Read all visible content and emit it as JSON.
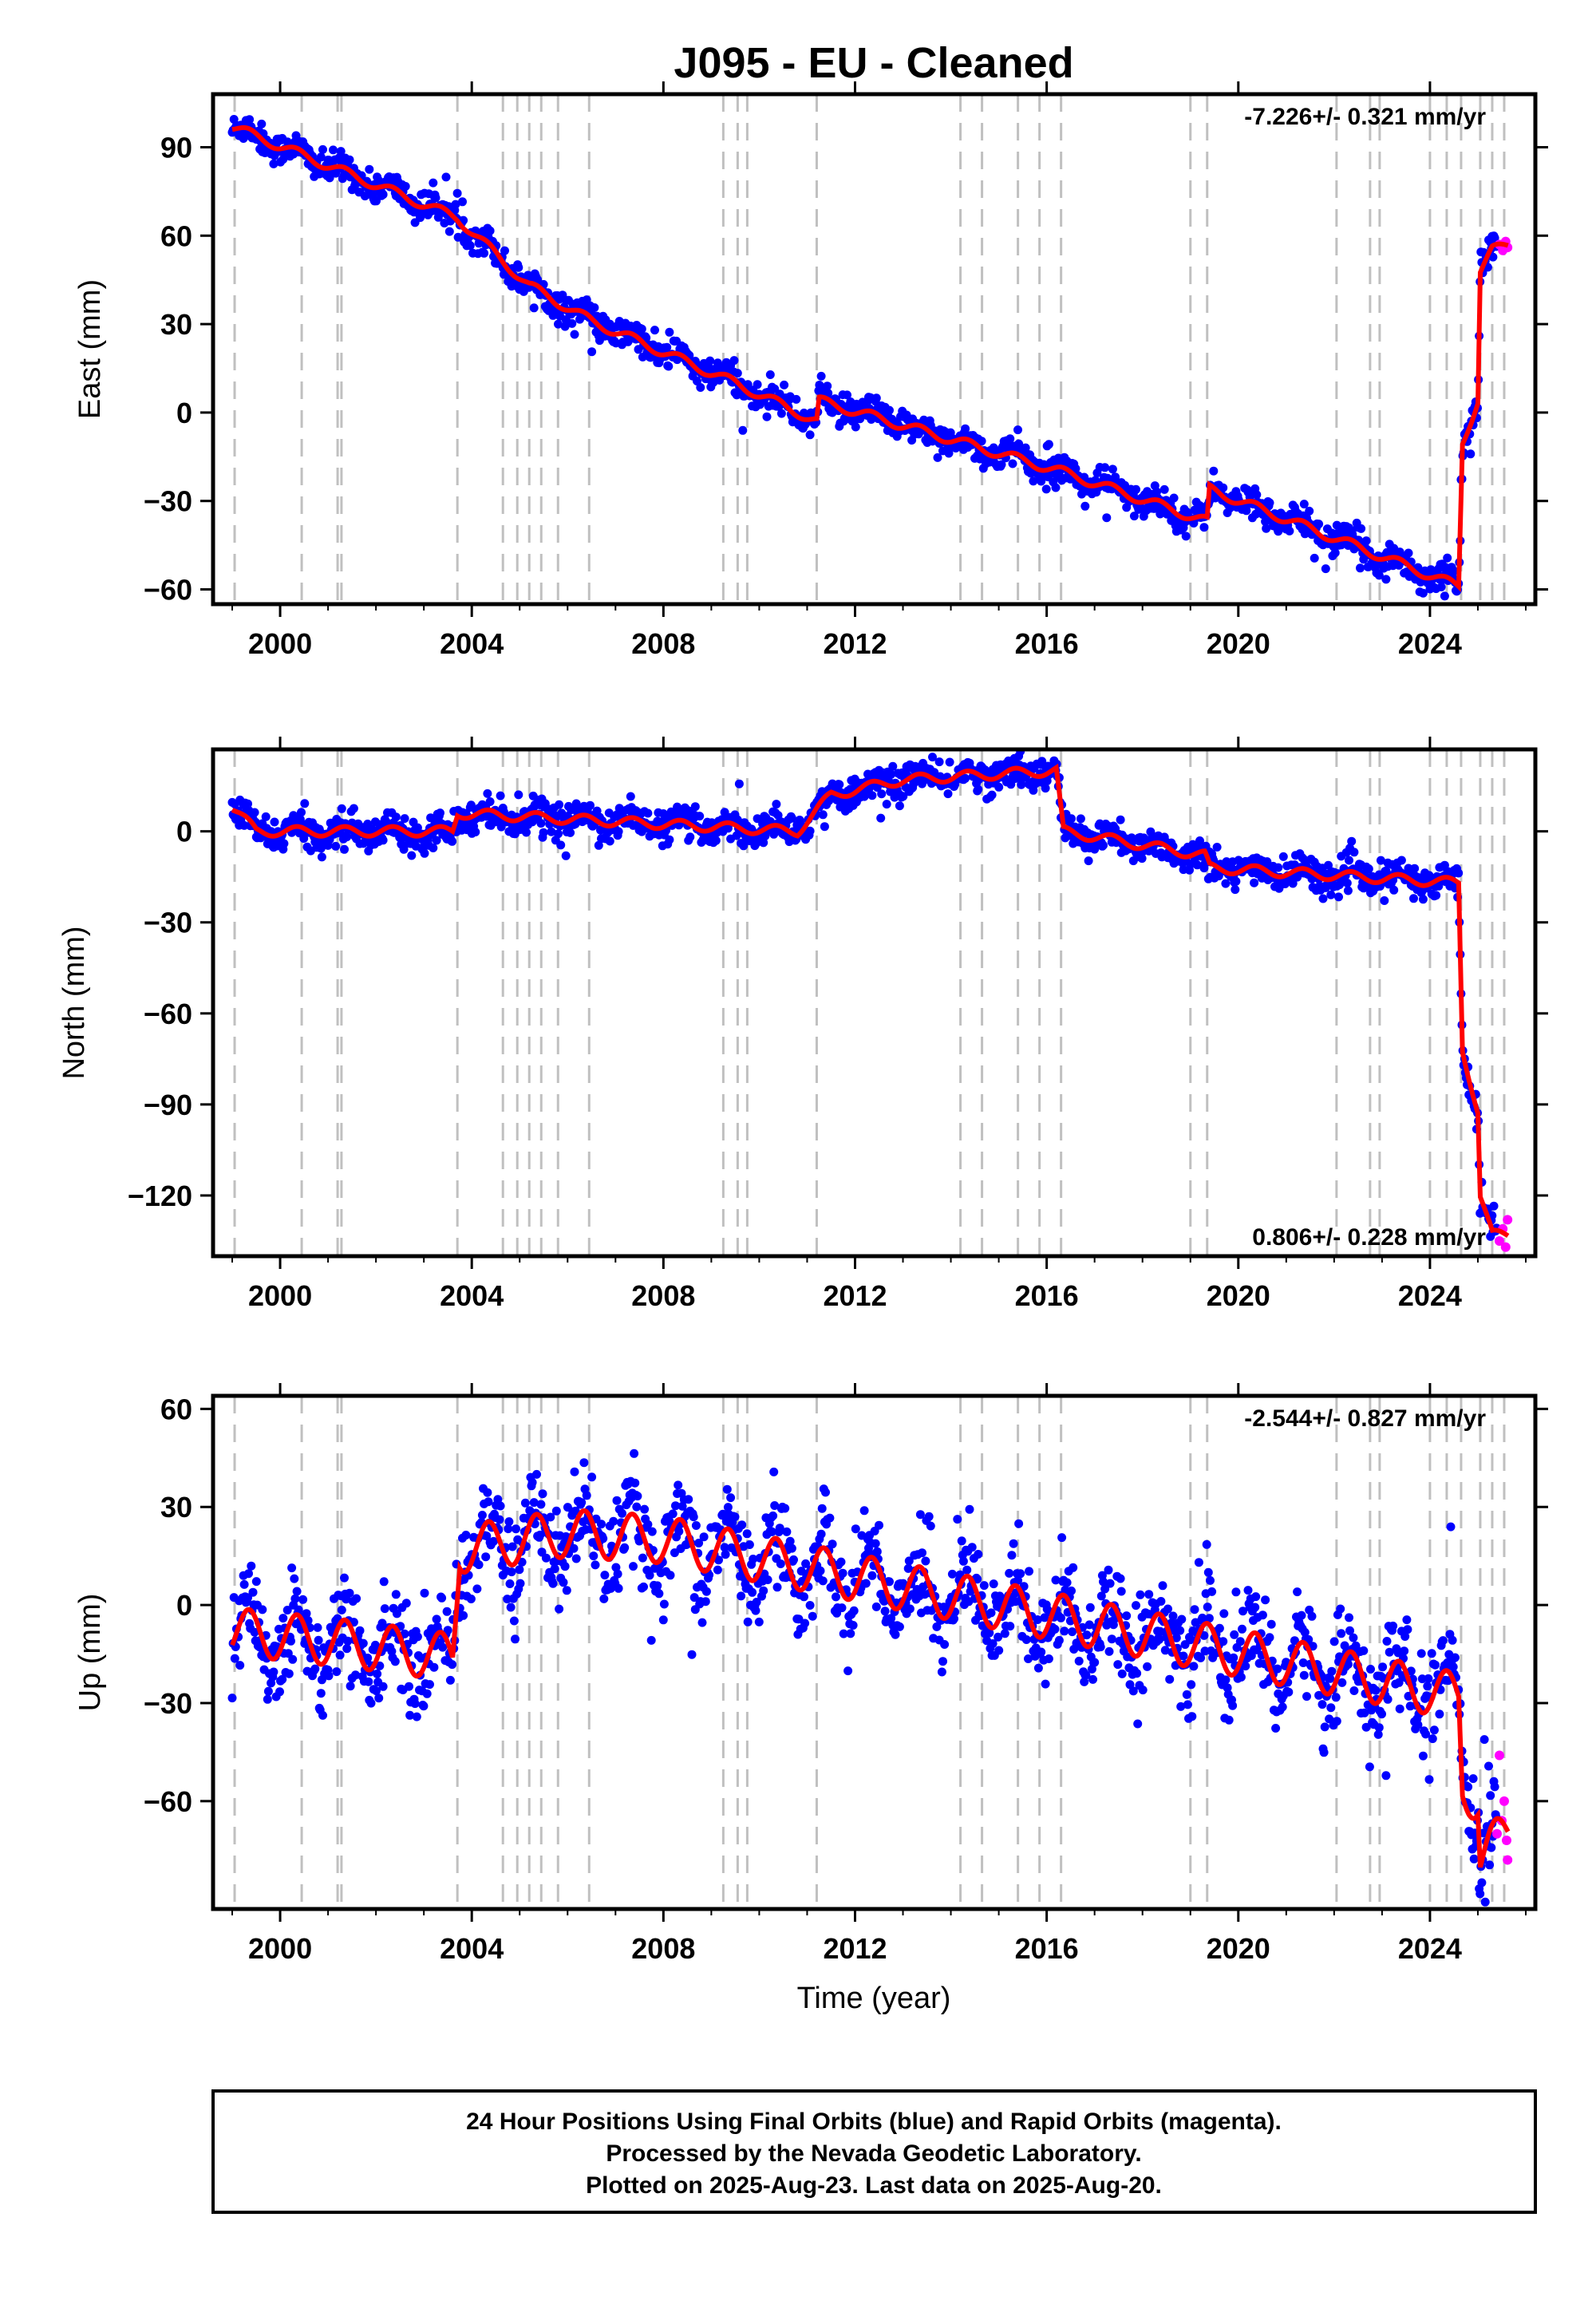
{
  "title": "J095  - EU - Cleaned",
  "xlabel": "Time (year)",
  "x_ticks": [
    2000,
    2004,
    2008,
    2012,
    2016,
    2020,
    2024
  ],
  "xlim": [
    1998.6,
    2026.2
  ],
  "colors": {
    "final": "#0000ff",
    "rapid": "#ff00ff",
    "model": "#ff0000",
    "events": "#c0c0c0"
  },
  "event_lines": [
    1999.05,
    2000.45,
    2001.2,
    2001.28,
    2003.7,
    2004.65,
    2004.95,
    2005.2,
    2005.45,
    2005.8,
    2006.45,
    2009.25,
    2009.55,
    2009.75,
    2011.2,
    2014.2,
    2014.65,
    2015.4,
    2015.85,
    2016.3,
    2019.0,
    2019.35,
    2022.05,
    2022.75,
    2022.95,
    2024.0,
    2024.35,
    2024.65,
    2025.05,
    2025.3,
    2025.55
  ],
  "footer": {
    "line1": "24 Hour Positions Using Final Orbits (blue) and Rapid Orbits (magenta).",
    "line2": "Processed by the Nevada Geodetic Laboratory.",
    "line3": "Plotted on 2025-Aug-23. Last data on 2025-Aug-20."
  },
  "chart_data": [
    {
      "type": "scatter",
      "ylabel": "East (mm)",
      "ylim": [
        -65,
        108
      ],
      "y_ticks": [
        -60,
        -30,
        0,
        30,
        60,
        90
      ],
      "rate_label": "-7.226+/- 0.321 mm/yr",
      "rate_position": "top-right",
      "trend": [
        [
          1999.0,
          97
        ],
        [
          2003.7,
          66
        ],
        [
          2005.2,
          43
        ],
        [
          2006.5,
          31
        ],
        [
          2009.5,
          10
        ],
        [
          2011.2,
          -3
        ],
        [
          2011.25,
          4
        ],
        [
          2016.3,
          -20
        ],
        [
          2019.35,
          -37
        ],
        [
          2019.4,
          -26
        ],
        [
          2024.6,
          -59
        ],
        [
          2024.68,
          -10
        ],
        [
          2025.0,
          4
        ],
        [
          2025.05,
          48
        ],
        [
          2025.3,
          55
        ],
        [
          2025.63,
          57
        ]
      ],
      "seasonal_amplitude": 2,
      "scatter_sd": 2.5,
      "rapid_points": [
        [
          2025.45,
          57
        ],
        [
          2025.52,
          55
        ],
        [
          2025.58,
          58
        ],
        [
          2025.62,
          56
        ]
      ]
    },
    {
      "type": "scatter",
      "ylabel": "North (mm)",
      "ylim": [
        -140,
        27
      ],
      "y_ticks": [
        -120,
        -90,
        -60,
        -30,
        0
      ],
      "rate_label": "0.806+/- 0.228 mm/yr",
      "rate_position": "bottom-right",
      "trend": [
        [
          1999.0,
          8
        ],
        [
          1999.5,
          0
        ],
        [
          2003.6,
          0
        ],
        [
          2003.7,
          6
        ],
        [
          2010.8,
          0
        ],
        [
          2011.5,
          12
        ],
        [
          2013.0,
          17
        ],
        [
          2016.2,
          20
        ],
        [
          2016.35,
          0
        ],
        [
          2019.3,
          -8
        ],
        [
          2019.4,
          -12
        ],
        [
          2024.6,
          -17
        ],
        [
          2024.68,
          -72
        ],
        [
          2025.0,
          -92
        ],
        [
          2025.05,
          -120
        ],
        [
          2025.3,
          -133
        ],
        [
          2025.63,
          -133
        ]
      ],
      "seasonal_amplitude": 2,
      "scatter_sd": 2.5,
      "rapid_points": [
        [
          2025.45,
          -135
        ],
        [
          2025.52,
          -131
        ],
        [
          2025.58,
          -137
        ],
        [
          2025.62,
          -128
        ]
      ]
    },
    {
      "type": "scatter",
      "ylabel": "Up (mm)",
      "ylim": [
        -93,
        64
      ],
      "y_ticks": [
        -60,
        -30,
        0,
        30,
        60
      ],
      "rate_label": "-2.544+/- 0.827 mm/yr",
      "rate_position": "top-right",
      "trend": [
        [
          1999.0,
          -8
        ],
        [
          2001.5,
          -12
        ],
        [
          2003.6,
          -16
        ],
        [
          2003.75,
          17
        ],
        [
          2006.0,
          22
        ],
        [
          2008.0,
          20
        ],
        [
          2024.6,
          -28
        ],
        [
          2024.68,
          -55
        ],
        [
          2025.0,
          -60
        ],
        [
          2025.05,
          -78
        ],
        [
          2025.3,
          -74
        ],
        [
          2025.63,
          -68
        ]
      ],
      "seasonal_amplitude": 9,
      "scatter_sd": 7,
      "rapid_points": [
        [
          2025.4,
          -70
        ],
        [
          2025.45,
          -46
        ],
        [
          2025.5,
          -66
        ],
        [
          2025.55,
          -60
        ],
        [
          2025.6,
          -72
        ],
        [
          2025.62,
          -78
        ]
      ]
    }
  ]
}
